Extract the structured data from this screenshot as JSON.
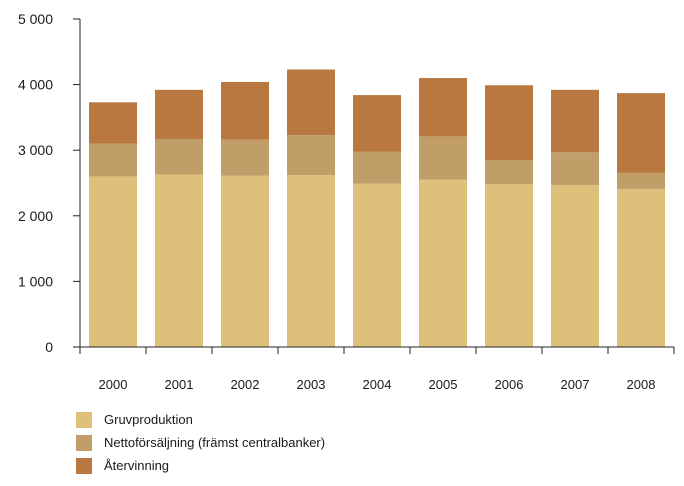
{
  "chart_data": {
    "type": "bar",
    "stacked": true,
    "categories": [
      "2000",
      "2001",
      "2002",
      "2003",
      "2004",
      "2005",
      "2006",
      "2007",
      "2008"
    ],
    "series": [
      {
        "name": "Gruvproduktion",
        "color": "#dfc07a",
        "values": [
          2600,
          2630,
          2610,
          2620,
          2490,
          2550,
          2480,
          2470,
          2410
        ]
      },
      {
        "name": "Nettoförsäljning (främst centralbanker)",
        "color": "#c19e67",
        "values": [
          500,
          540,
          550,
          610,
          490,
          660,
          370,
          500,
          250
        ]
      },
      {
        "name": "Återvinning",
        "color": "#b87840",
        "values": [
          630,
          750,
          880,
          1000,
          860,
          890,
          1140,
          950,
          1210
        ]
      }
    ],
    "yticks": [
      {
        "value": 0,
        "label": "0"
      },
      {
        "value": 1000,
        "label": "1 000"
      },
      {
        "value": 2000,
        "label": "2 000"
      },
      {
        "value": 3000,
        "label": "3 000"
      },
      {
        "value": 4000,
        "label": "4 000"
      },
      {
        "value": 5000,
        "label": "5 000"
      }
    ],
    "ylim": [
      0,
      5000
    ],
    "grid": false,
    "legend_position": "bottom-left",
    "title": "",
    "xlabel": "",
    "ylabel": ""
  }
}
